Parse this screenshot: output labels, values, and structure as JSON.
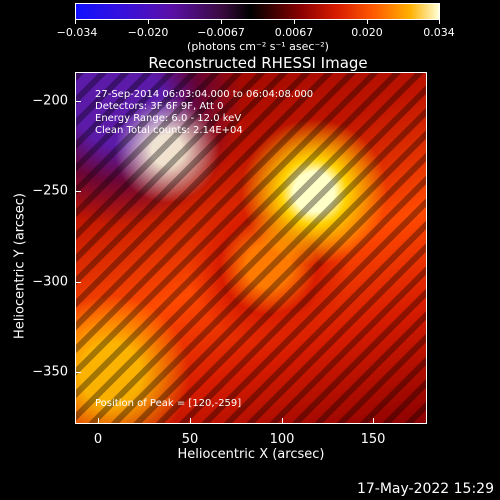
{
  "colorbar": {
    "tick_labels": [
      "−0.034",
      "−0.020",
      "−0.0067",
      "0.0067",
      "0.020",
      "0.034"
    ],
    "units": "(photons cm⁻² s⁻¹ asec⁻²)"
  },
  "plot": {
    "title": "Reconstructed RHESSI Image",
    "info": [
      "27-Sep-2014 06:03:04.000 to 06:04:08.000",
      "Detectors: 3F 6F 9F, Att 0",
      "Energy Range: 6.0 - 12.0 keV",
      "Clean     Total counts: 2.14E+04"
    ],
    "peak": "Position of Peak = [120,-259]"
  },
  "axes": {
    "x_label": "Heliocentric X (arcsec)",
    "y_label": "Heliocentric Y (arcsec)",
    "x_ticks": [
      "0",
      "50",
      "100",
      "150"
    ],
    "y_ticks": [
      "−200",
      "−250",
      "−300",
      "−350"
    ]
  },
  "footer": {
    "timestamp": "17-May-2022 15:29"
  }
}
